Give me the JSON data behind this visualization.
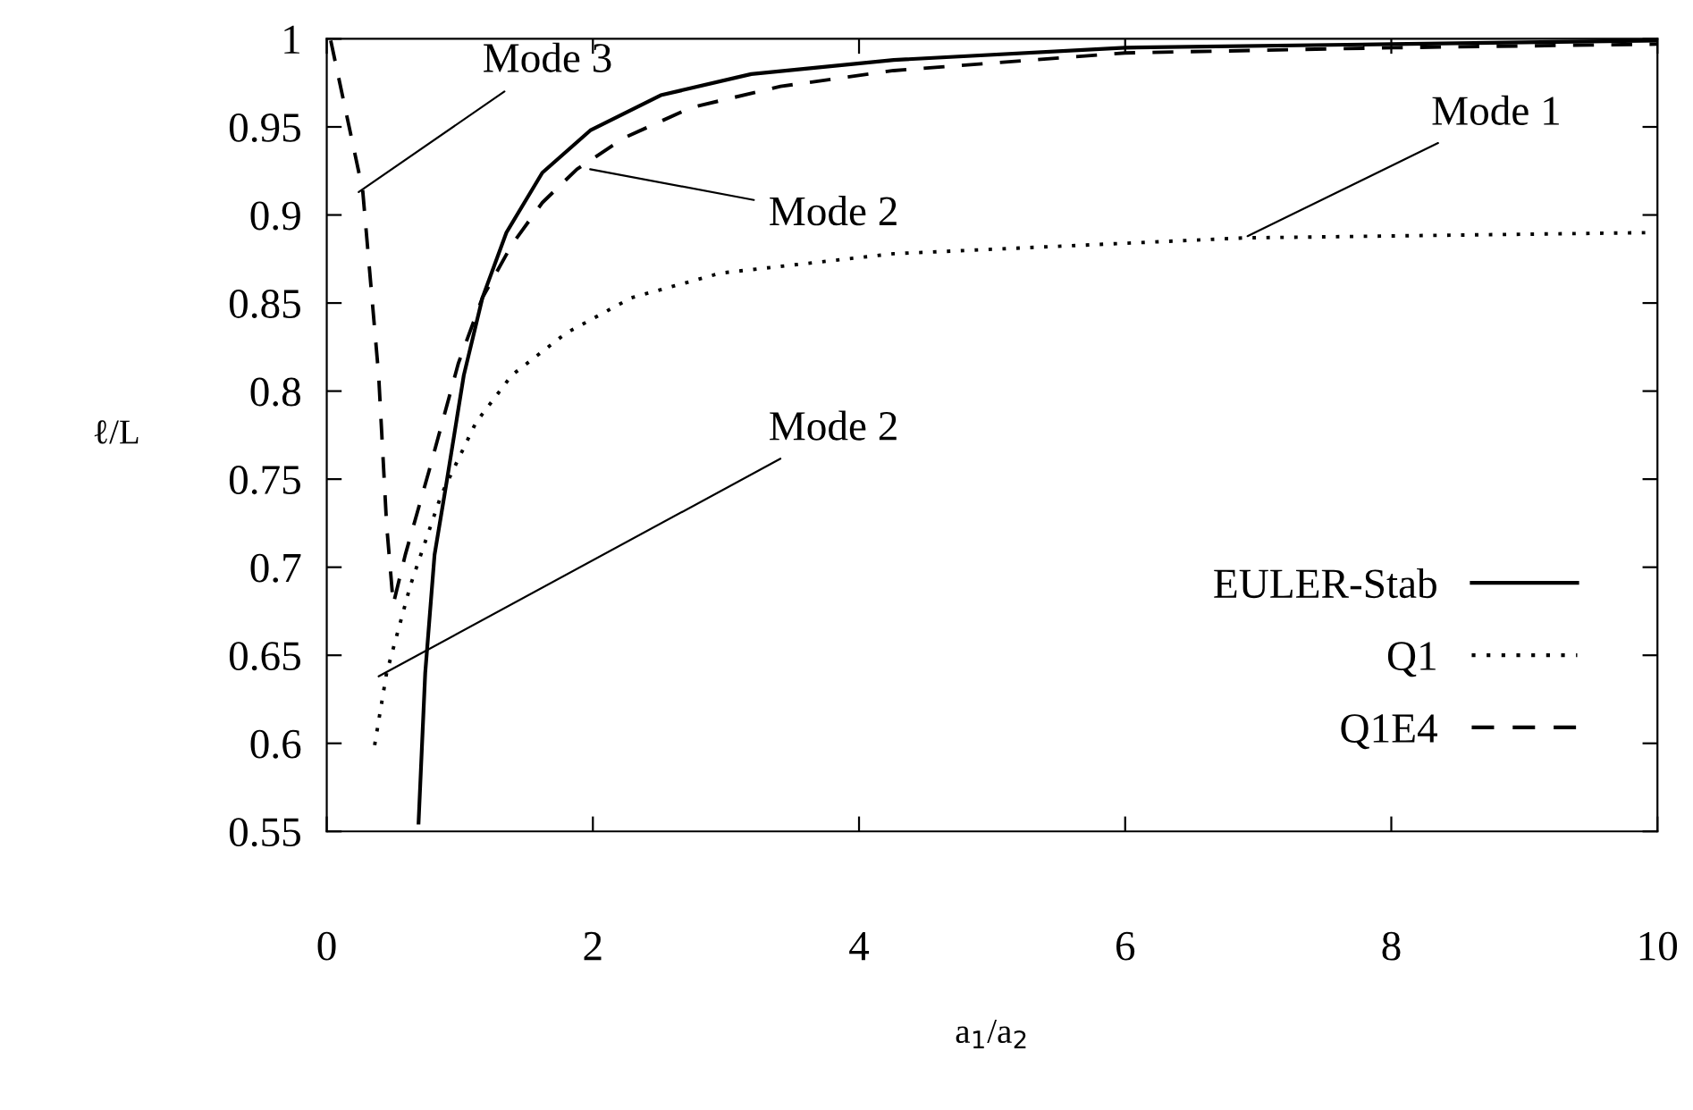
{
  "chart_data": {
    "type": "line",
    "xlabel": "a$_{1}$/a$_{2}$",
    "ylabel": "ℓ/L",
    "xlim": [
      0,
      10
    ],
    "ylim": [
      0.55,
      1
    ],
    "xticks": [
      0,
      2,
      4,
      6,
      8,
      10
    ],
    "yticks": [
      0.55,
      {
        "value": 0.6,
        "label": "0.6"
      },
      0.65,
      {
        "value": 0.7,
        "label": "0.7"
      },
      0.75,
      {
        "value": 0.8,
        "label": "0.8"
      },
      0.85,
      {
        "value": 0.9,
        "label": "0.9"
      },
      0.95,
      1
    ],
    "grid": false,
    "legend": "lower right",
    "marker": "none",
    "series": [
      {
        "name": "EULER-Stab",
        "color": "#000000",
        "line_style": "solid",
        "x": [
          0.69,
          0.74,
          0.81,
          0.9,
          1.03,
          1.17,
          1.35,
          1.62,
          1.98,
          2.51,
          3.19,
          4.26,
          6.0,
          8.0,
          10.0
        ],
        "values": [
          0.555,
          0.64,
          0.707,
          0.748,
          0.809,
          0.853,
          0.89,
          0.924,
          0.948,
          0.968,
          0.98,
          0.988,
          0.995,
          0.997,
          0.999
        ]
      },
      {
        "name": "Q1",
        "color": "#000000",
        "line_style": "dotted",
        "x": [
          0.36,
          0.45,
          0.63,
          0.86,
          1.12,
          1.39,
          1.8,
          2.29,
          2.96,
          4.26,
          6.9,
          9.95
        ],
        "values": [
          0.599,
          0.64,
          0.69,
          0.741,
          0.782,
          0.809,
          0.833,
          0.853,
          0.867,
          0.878,
          0.887,
          0.89
        ]
      },
      {
        "name": "Q1E4",
        "color": "#000000",
        "line_style": "dashed",
        "x": [
          0.03,
          0.27,
          0.39,
          0.45,
          0.5,
          0.59,
          0.77,
          0.99,
          1.17,
          1.39,
          1.62,
          1.88,
          2.24,
          2.74,
          3.41,
          4.26,
          6.0,
          8.02,
          10.0
        ],
        "values": [
          0.999,
          0.914,
          0.809,
          0.724,
          0.679,
          0.707,
          0.755,
          0.816,
          0.853,
          0.883,
          0.907,
          0.926,
          0.944,
          0.961,
          0.973,
          0.982,
          0.992,
          0.995,
          0.997
        ]
      }
    ],
    "annotations": [
      {
        "text": "Mode 3",
        "x": 0.24,
        "y": 0.913
      },
      {
        "text": "Mode 2",
        "x": 1.98,
        "y": 0.926
      },
      {
        "text": "Mode 2",
        "x": 0.39,
        "y": 0.638
      },
      {
        "text": "Mode 1",
        "x": 6.92,
        "y": 0.888
      }
    ]
  }
}
